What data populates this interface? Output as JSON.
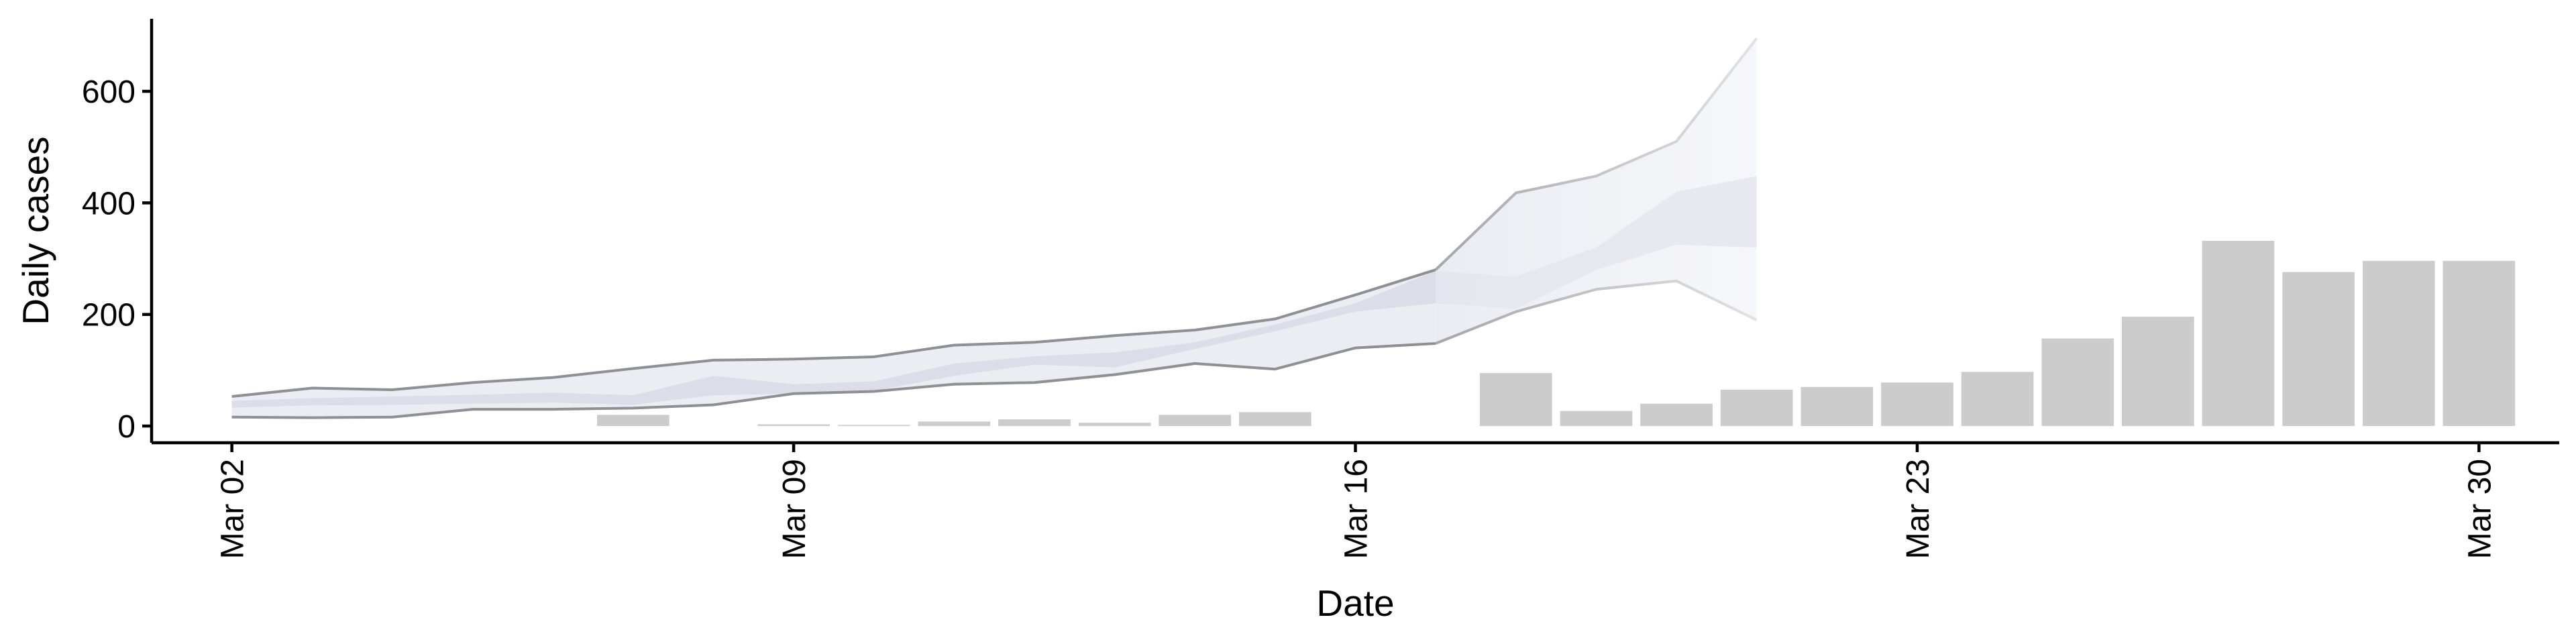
{
  "chart_data": {
    "type": "bar",
    "x_type": "date",
    "xlabel": "Date",
    "ylabel": "Daily cases",
    "xlim": [
      "2020-03-01",
      "2020-03-31"
    ],
    "ylim": [
      -30,
      730
    ],
    "x_ticks": [
      {
        "date": "2020-03-02",
        "label": "Mar 02"
      },
      {
        "date": "2020-03-09",
        "label": "Mar 09"
      },
      {
        "date": "2020-03-16",
        "label": "Mar 16"
      },
      {
        "date": "2020-03-23",
        "label": "Mar 23"
      },
      {
        "date": "2020-03-30",
        "label": "Mar 30"
      }
    ],
    "y_ticks": [
      0,
      200,
      400,
      600
    ],
    "grid": false,
    "legend": "none",
    "colors": {
      "bars": "#cccccc",
      "band": "#dadde8",
      "band_edge": "#8f8f96",
      "forecast_band": "#eceff5",
      "axis": "#000000"
    },
    "bars": [
      {
        "date": "2020-03-07",
        "value": 20
      },
      {
        "date": "2020-03-09",
        "value": 3
      },
      {
        "date": "2020-03-10",
        "value": 2
      },
      {
        "date": "2020-03-11",
        "value": 8
      },
      {
        "date": "2020-03-12",
        "value": 12
      },
      {
        "date": "2020-03-13",
        "value": 6
      },
      {
        "date": "2020-03-14",
        "value": 20
      },
      {
        "date": "2020-03-15",
        "value": 25
      },
      {
        "date": "2020-03-18",
        "value": 95
      },
      {
        "date": "2020-03-19",
        "value": 27
      },
      {
        "date": "2020-03-20",
        "value": 40
      },
      {
        "date": "2020-03-21",
        "value": 65
      },
      {
        "date": "2020-03-22",
        "value": 70
      },
      {
        "date": "2020-03-23",
        "value": 78
      },
      {
        "date": "2020-03-24",
        "value": 97
      },
      {
        "date": "2020-03-25",
        "value": 157
      },
      {
        "date": "2020-03-26",
        "value": 196
      },
      {
        "date": "2020-03-27",
        "value": 332
      },
      {
        "date": "2020-03-28",
        "value": 276
      },
      {
        "date": "2020-03-29",
        "value": 296
      },
      {
        "date": "2020-03-30",
        "value": 296
      }
    ],
    "estimate_bands": {
      "dates": [
        "2020-03-02",
        "2020-03-03",
        "2020-03-04",
        "2020-03-05",
        "2020-03-06",
        "2020-03-07",
        "2020-03-08",
        "2020-03-09",
        "2020-03-10",
        "2020-03-11",
        "2020-03-12",
        "2020-03-13",
        "2020-03-14",
        "2020-03-15",
        "2020-03-16",
        "2020-03-17"
      ],
      "outer_lower": [
        16,
        15,
        16,
        30,
        30,
        32,
        38,
        58,
        62,
        75,
        78,
        92,
        112,
        102,
        140,
        148
      ],
      "outer_upper": [
        53,
        68,
        65,
        78,
        87,
        103,
        118,
        120,
        124,
        145,
        150,
        162,
        172,
        192,
        235,
        280
      ],
      "inner_lower": [
        33,
        37,
        38,
        40,
        42,
        38,
        55,
        58,
        63,
        90,
        110,
        105,
        138,
        170,
        205,
        220
      ],
      "inner_upper": [
        45,
        50,
        53,
        56,
        60,
        55,
        90,
        75,
        80,
        112,
        125,
        132,
        150,
        182,
        220,
        278
      ]
    },
    "forecast_bands": {
      "dates": [
        "2020-03-17",
        "2020-03-18",
        "2020-03-19",
        "2020-03-20",
        "2020-03-21"
      ],
      "outer_lower": [
        148,
        205,
        245,
        260,
        190
      ],
      "outer_upper": [
        280,
        418,
        448,
        510,
        695
      ],
      "inner_lower": [
        220,
        210,
        280,
        325,
        320
      ],
      "inner_upper": [
        278,
        268,
        320,
        420,
        448
      ]
    }
  }
}
